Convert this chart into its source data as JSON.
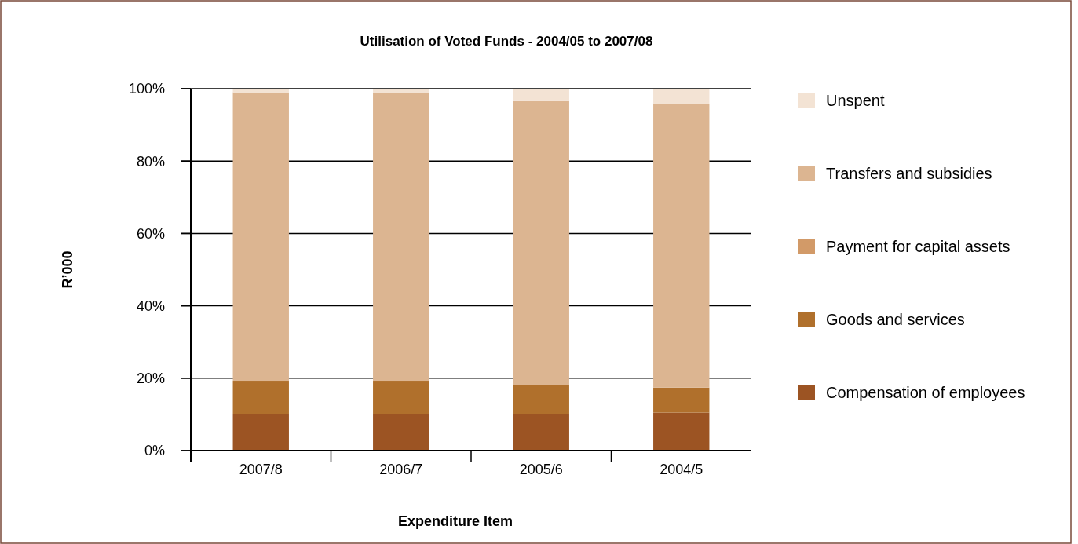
{
  "chart_data": {
    "type": "bar",
    "title": "Utilisation of Voted Funds - 2004/05 to 2007/08",
    "xlabel": "Expenditure Item",
    "ylabel": "R’000",
    "categories": [
      "2007/8",
      "2006/7",
      "2005/6",
      "2004/5"
    ],
    "stacked": true,
    "series": [
      {
        "name": "Compensation of employees",
        "color": "#9c5423",
        "values": [
          10,
          10,
          10,
          10.5
        ]
      },
      {
        "name": "Goods and services",
        "color": "#b0702c",
        "values": [
          9.3,
          9.3,
          8.2,
          6.9
        ]
      },
      {
        "name": "Payment for capital assets",
        "color": "#d29a68",
        "values": [
          0,
          0,
          0,
          0
        ]
      },
      {
        "name": "Transfers and subsidies",
        "color": "#dcb591",
        "values": [
          79.7,
          79.7,
          78.4,
          78.3
        ]
      },
      {
        "name": "Unspent",
        "color": "#f3e3d4",
        "values": [
          1,
          1,
          3.4,
          4.3
        ]
      }
    ],
    "ylim": [
      0,
      100
    ],
    "yticks": [
      {
        "value": 0,
        "label": "0%"
      },
      {
        "value": 20,
        "label": "20%"
      },
      {
        "value": 40,
        "label": "40%"
      },
      {
        "value": 60,
        "label": "60%"
      },
      {
        "value": 80,
        "label": "80%"
      },
      {
        "value": 100,
        "label": "100%"
      }
    ],
    "grid": "y",
    "legend": "right"
  }
}
